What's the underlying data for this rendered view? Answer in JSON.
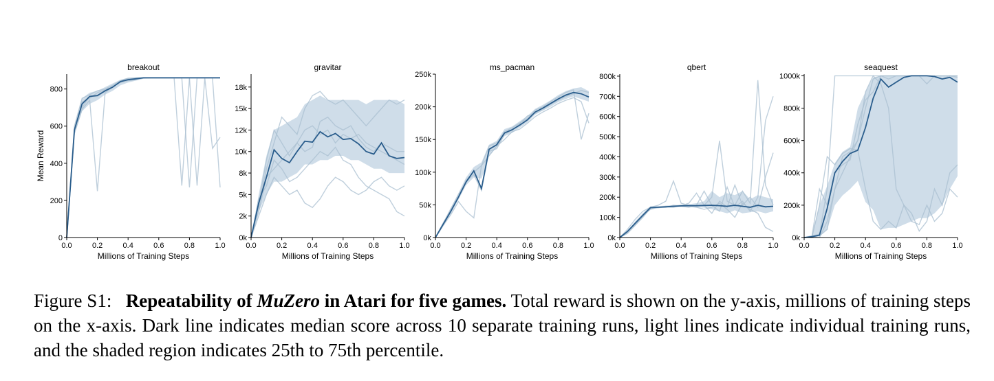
{
  "caption": {
    "label": "Figure S1:",
    "title_pre": "Repeatability of ",
    "title_em": "MuZero",
    "title_post": " in Atari for five games.",
    "body": "Total reward is shown on the y-axis, millions of training steps on the x-axis. Dark line indicates median score across 10 separate training runs, light lines indicate individual training runs, and the shaded region indicates 25th to 75th percentile."
  },
  "colors": {
    "median": "#2a5d8c",
    "band": "#c7d7e5",
    "runs": "#a9bfd0"
  },
  "chart_data": [
    {
      "type": "line",
      "title": "breakout",
      "xlabel": "Millions of Training Steps",
      "ylabel": "Mean Reward",
      "xlim": [
        0,
        1
      ],
      "ylim": [
        0,
        880
      ],
      "xticks": [
        0,
        0.2,
        0.4,
        0.6,
        0.8,
        1.0
      ],
      "xtick_labels": [
        "0.0",
        "0.2",
        "0.4",
        "0.6",
        "0.8",
        "1.0"
      ],
      "yticks": [
        0,
        200,
        400,
        600,
        800
      ],
      "ytick_labels": [
        "0",
        "200",
        "400",
        "600",
        "800"
      ],
      "x": [
        0,
        0.05,
        0.1,
        0.15,
        0.2,
        0.25,
        0.3,
        0.35,
        0.4,
        0.45,
        0.5,
        0.55,
        0.6,
        0.65,
        0.7,
        0.75,
        0.8,
        0.85,
        0.9,
        0.95,
        1.0
      ],
      "median": [
        0,
        580,
        720,
        760,
        765,
        790,
        810,
        840,
        850,
        855,
        860,
        860,
        860,
        860,
        860,
        860,
        860,
        860,
        860,
        860,
        860
      ],
      "q25": [
        0,
        560,
        680,
        720,
        740,
        770,
        790,
        820,
        835,
        845,
        855,
        858,
        858,
        858,
        858,
        858,
        858,
        858,
        858,
        858,
        858
      ],
      "q75": [
        0,
        600,
        750,
        780,
        790,
        810,
        830,
        850,
        860,
        862,
        864,
        864,
        864,
        864,
        864,
        864,
        864,
        864,
        864,
        864,
        864
      ],
      "runs": [
        [
          0,
          560,
          690,
          740,
          250,
          780,
          810,
          840,
          855,
          860,
          860,
          860,
          860,
          860,
          860,
          280,
          860,
          860,
          860,
          860,
          860
        ],
        [
          0,
          600,
          750,
          770,
          790,
          800,
          820,
          845,
          858,
          860,
          860,
          860,
          860,
          860,
          860,
          860,
          270,
          860,
          860,
          860,
          270
        ],
        [
          0,
          580,
          700,
          760,
          760,
          790,
          810,
          840,
          850,
          855,
          860,
          860,
          860,
          860,
          860,
          860,
          860,
          280,
          860,
          480,
          540
        ],
        [
          0,
          570,
          730,
          750,
          780,
          795,
          815,
          835,
          845,
          850,
          860,
          860,
          860,
          860,
          860,
          860,
          860,
          860,
          860,
          860,
          860
        ]
      ]
    },
    {
      "type": "line",
      "title": "gravitar",
      "xlabel": "Millions of Training Steps",
      "ylabel": "",
      "xlim": [
        0,
        1
      ],
      "ylim": [
        0,
        19000
      ],
      "xticks": [
        0,
        0.2,
        0.4,
        0.6,
        0.8,
        1.0
      ],
      "xtick_labels": [
        "0.0",
        "0.2",
        "0.4",
        "0.6",
        "0.8",
        "1.0"
      ],
      "yticks": [
        0,
        2500,
        5000,
        7500,
        10000,
        12500,
        15000,
        17500
      ],
      "ytick_labels": [
        "0k",
        "2k",
        "5k",
        "8k",
        "10k",
        "12k",
        "15k",
        "18k"
      ],
      "x": [
        0,
        0.05,
        0.1,
        0.15,
        0.2,
        0.25,
        0.3,
        0.35,
        0.4,
        0.45,
        0.5,
        0.55,
        0.6,
        0.65,
        0.7,
        0.75,
        0.8,
        0.85,
        0.9,
        0.95,
        1.0
      ],
      "median": [
        0,
        4000,
        7000,
        10200,
        9200,
        8700,
        10000,
        11200,
        11100,
        12300,
        11700,
        12100,
        11400,
        11500,
        10900,
        10000,
        9700,
        11000,
        9500,
        9200,
        9300
      ],
      "q25": [
        0,
        3000,
        5000,
        6500,
        6500,
        7000,
        7500,
        8500,
        8500,
        9000,
        9000,
        9500,
        9500,
        9000,
        9000,
        8500,
        8000,
        8000,
        7500,
        7500,
        7500
      ],
      "q75": [
        0,
        5000,
        9500,
        12500,
        13000,
        13500,
        14000,
        15500,
        16000,
        16500,
        16000,
        16000,
        16000,
        16000,
        16000,
        15500,
        16000,
        16000,
        16000,
        16000,
        15500
      ],
      "runs": [
        [
          0,
          3500,
          8000,
          11000,
          14000,
          13000,
          12000,
          15000,
          16500,
          17000,
          16000,
          15500,
          16000,
          15000,
          14000,
          13000,
          14000,
          15000,
          16000,
          15500,
          16000
        ],
        [
          0,
          4500,
          6000,
          9000,
          8000,
          6500,
          7000,
          8000,
          9000,
          10000,
          9500,
          10500,
          9000,
          8500,
          7000,
          6000,
          5500,
          5000,
          4500,
          3000,
          2500
        ],
        [
          0,
          2500,
          5000,
          7000,
          6000,
          5000,
          5500,
          4000,
          3500,
          4500,
          6000,
          7000,
          6500,
          5500,
          5000,
          5500,
          6500,
          7000,
          6000,
          5500,
          6000
        ],
        [
          0,
          4000,
          9000,
          12500,
          11000,
          9500,
          11000,
          12500,
          13000,
          12000,
          12500,
          11000,
          12000,
          11500,
          12000,
          11000,
          10500,
          10000,
          9500,
          9000,
          8500
        ],
        [
          0,
          3000,
          7000,
          8000,
          9000,
          10000,
          11000,
          10000,
          10500,
          13500,
          14000,
          13000,
          12500,
          13000,
          11500,
          10500,
          10000,
          11000,
          10500,
          10000,
          10000
        ]
      ]
    },
    {
      "type": "line",
      "title": "ms_pacman",
      "xlabel": "Millions of Training Steps",
      "ylabel": "",
      "xlim": [
        0,
        1
      ],
      "ylim": [
        0,
        250000
      ],
      "xticks": [
        0,
        0.2,
        0.4,
        0.6,
        0.8,
        1.0
      ],
      "xtick_labels": [
        "0.0",
        "0.2",
        "0.4",
        "0.6",
        "0.8",
        "1.0"
      ],
      "yticks": [
        0,
        50000,
        100000,
        150000,
        200000,
        250000
      ],
      "ytick_labels": [
        "0k",
        "50k",
        "100k",
        "150k",
        "200k",
        "250k"
      ],
      "x": [
        0,
        0.05,
        0.1,
        0.15,
        0.2,
        0.25,
        0.3,
        0.35,
        0.4,
        0.45,
        0.5,
        0.55,
        0.6,
        0.65,
        0.7,
        0.75,
        0.8,
        0.85,
        0.9,
        0.95,
        1.0
      ],
      "median": [
        0,
        20000,
        40000,
        62000,
        85000,
        102000,
        75000,
        135000,
        142000,
        160000,
        165000,
        172000,
        180000,
        192000,
        198000,
        205000,
        212000,
        218000,
        222000,
        220000,
        215000
      ],
      "q25": [
        0,
        18000,
        36000,
        58000,
        80000,
        92000,
        90000,
        125000,
        138000,
        155000,
        160000,
        168000,
        176000,
        188000,
        194000,
        200000,
        207000,
        212000,
        216000,
        212000,
        208000
      ],
      "q75": [
        0,
        23000,
        44000,
        68000,
        92000,
        108000,
        115000,
        142000,
        148000,
        166000,
        170000,
        178000,
        186000,
        197000,
        203000,
        210000,
        218000,
        224000,
        228000,
        230000,
        224000
      ],
      "runs": [
        [
          0,
          22000,
          42000,
          60000,
          88000,
          100000,
          110000,
          140000,
          145000,
          162000,
          168000,
          175000,
          182000,
          195000,
          200000,
          208000,
          215000,
          222000,
          226000,
          150000,
          190000
        ],
        [
          0,
          18000,
          35000,
          55000,
          40000,
          30000,
          110000,
          125000,
          140000,
          150000,
          162000,
          166000,
          175000,
          185000,
          192000,
          198000,
          205000,
          210000,
          214000,
          208000,
          175000
        ],
        [
          0,
          21000,
          44000,
          66000,
          86000,
          96000,
          72000,
          132000,
          136000,
          158000,
          164000,
          174000,
          186000,
          190000,
          196000,
          204000,
          210000,
          216000,
          220000,
          225000,
          222000
        ]
      ]
    },
    {
      "type": "line",
      "title": "qbert",
      "xlabel": "Millions of Training Steps",
      "ylabel": "",
      "xlim": [
        0,
        1
      ],
      "ylim": [
        0,
        810000
      ],
      "xticks": [
        0,
        0.2,
        0.4,
        0.6,
        0.8,
        1.0
      ],
      "xtick_labels": [
        "0.0",
        "0.2",
        "0.4",
        "0.6",
        "0.8",
        "1.0"
      ],
      "yticks": [
        0,
        100000,
        200000,
        300000,
        400000,
        500000,
        600000,
        700000,
        800000
      ],
      "ytick_labels": [
        "0k",
        "100k",
        "200k",
        "300k",
        "400k",
        "500k",
        "600k",
        "700k",
        "800k"
      ],
      "x": [
        0,
        0.05,
        0.1,
        0.15,
        0.2,
        0.25,
        0.3,
        0.35,
        0.4,
        0.45,
        0.5,
        0.55,
        0.6,
        0.65,
        0.7,
        0.75,
        0.8,
        0.85,
        0.9,
        0.95,
        1.0
      ],
      "median": [
        0,
        30000,
        70000,
        110000,
        148000,
        150000,
        152000,
        155000,
        157000,
        158000,
        158000,
        159000,
        160000,
        158000,
        155000,
        160000,
        155000,
        150000,
        160000,
        152000,
        155000
      ],
      "q25": [
        0,
        25000,
        60000,
        100000,
        140000,
        145000,
        148000,
        150000,
        152000,
        153000,
        150000,
        148000,
        140000,
        130000,
        120000,
        135000,
        120000,
        125000,
        130000,
        120000,
        130000
      ],
      "q75": [
        0,
        35000,
        80000,
        120000,
        155000,
        156000,
        158000,
        160000,
        162000,
        165000,
        170000,
        180000,
        230000,
        200000,
        220000,
        210000,
        230000,
        190000,
        210000,
        200000,
        190000
      ],
      "runs": [
        [
          0,
          40000,
          90000,
          130000,
          150000,
          160000,
          180000,
          280000,
          170000,
          160000,
          155000,
          160000,
          200000,
          480000,
          180000,
          160000,
          230000,
          170000,
          780000,
          260000,
          160000
        ],
        [
          0,
          20000,
          60000,
          100000,
          145000,
          150000,
          150000,
          160000,
          155000,
          150000,
          160000,
          230000,
          160000,
          130000,
          250000,
          150000,
          180000,
          130000,
          200000,
          580000,
          700000
        ],
        [
          0,
          30000,
          70000,
          115000,
          150000,
          148000,
          152000,
          150000,
          158000,
          170000,
          220000,
          160000,
          120000,
          180000,
          150000,
          260000,
          160000,
          200000,
          150000,
          300000,
          420000
        ],
        [
          0,
          25000,
          65000,
          110000,
          140000,
          150000,
          155000,
          155000,
          160000,
          155000,
          150000,
          140000,
          150000,
          170000,
          140000,
          100000,
          170000,
          140000,
          120000,
          50000,
          30000
        ]
      ]
    },
    {
      "type": "line",
      "title": "seaquest",
      "xlabel": "Millions of Training Steps",
      "ylabel": "",
      "xlim": [
        0,
        1
      ],
      "ylim": [
        0,
        1010000
      ],
      "xticks": [
        0,
        0.2,
        0.4,
        0.6,
        0.8,
        1.0
      ],
      "xtick_labels": [
        "0.0",
        "0.2",
        "0.4",
        "0.6",
        "0.8",
        "1.0"
      ],
      "yticks": [
        0,
        200000,
        400000,
        600000,
        800000,
        1000000
      ],
      "ytick_labels": [
        "0k",
        "200k",
        "400k",
        "600k",
        "800k",
        "1000k"
      ],
      "x": [
        0,
        0.05,
        0.1,
        0.15,
        0.2,
        0.25,
        0.3,
        0.35,
        0.4,
        0.45,
        0.5,
        0.55,
        0.6,
        0.65,
        0.7,
        0.75,
        0.8,
        0.85,
        0.9,
        0.95,
        1.0
      ],
      "median": [
        0,
        5000,
        15000,
        180000,
        400000,
        470000,
        520000,
        540000,
        680000,
        860000,
        980000,
        930000,
        960000,
        990000,
        1000000,
        1000000,
        1000000,
        995000,
        980000,
        990000,
        960000
      ],
      "q25": [
        0,
        0,
        10000,
        50000,
        200000,
        260000,
        300000,
        350000,
        220000,
        170000,
        50000,
        60000,
        60000,
        80000,
        100000,
        120000,
        120000,
        150000,
        200000,
        300000,
        380000
      ],
      "q75": [
        0,
        10000,
        200000,
        320000,
        460000,
        530000,
        560000,
        800000,
        900000,
        990000,
        1000000,
        1000000,
        1000000,
        1000000,
        1000000,
        1000000,
        1000000,
        1000000,
        1000000,
        1000000,
        1000000
      ],
      "runs": [
        [
          0,
          0,
          0,
          100000,
          300000,
          500000,
          530000,
          600000,
          800000,
          980000,
          1000000,
          1000000,
          1000000,
          1000000,
          1000000,
          1000000,
          1000000,
          1000000,
          1000000,
          1000000,
          1000000
        ],
        [
          0,
          0,
          200000,
          500000,
          450000,
          520000,
          550000,
          540000,
          300000,
          100000,
          50000,
          100000,
          60000,
          200000,
          150000,
          40000,
          100000,
          300000,
          200000,
          400000,
          450000
        ],
        [
          0,
          10000,
          20000,
          300000,
          1000000,
          1000000,
          1000000,
          1000000,
          1000000,
          1000000,
          1000000,
          1000000,
          1000000,
          1000000,
          1000000,
          1000000,
          1000000,
          1000000,
          1000000,
          1000000,
          1000000
        ],
        [
          0,
          0,
          10000,
          50000,
          300000,
          400000,
          500000,
          600000,
          900000,
          1000000,
          950000,
          800000,
          300000,
          200000,
          100000,
          80000,
          200000,
          100000,
          150000,
          300000,
          250000
        ],
        [
          0,
          5000,
          300000,
          200000,
          400000,
          450000,
          480000,
          700000,
          850000,
          900000,
          1000000,
          980000,
          1000000,
          1000000,
          1000000,
          1000000,
          950000,
          1000000,
          980000,
          1000000,
          990000
        ]
      ]
    }
  ]
}
